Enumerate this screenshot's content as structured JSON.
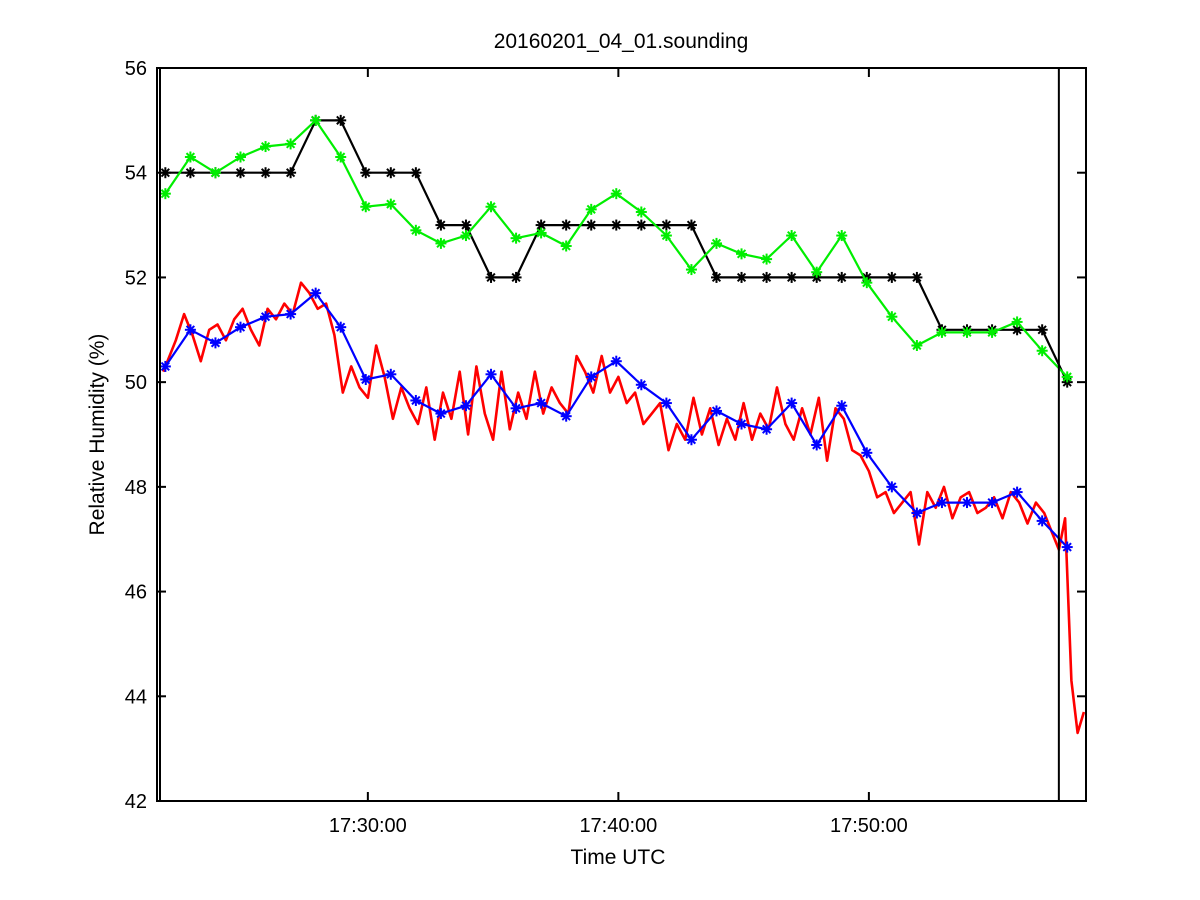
{
  "chart_data": {
    "type": "line",
    "title": "20160201_04_01.sounding",
    "xlabel": "Time UTC",
    "ylabel": "Relative Humidity (%)",
    "xlim": [
      "17:21:35",
      "17:58:40"
    ],
    "ylim": [
      42,
      56
    ],
    "xtick_labels": [
      "17:30:00",
      "17:40:00",
      "17:50:00"
    ],
    "xticks": [
      "17:30:00",
      "17:40:00",
      "17:50:00"
    ],
    "yticks": [
      42,
      44,
      46,
      48,
      50,
      52,
      54,
      56
    ],
    "grid": false,
    "vertical_lines": [
      "17:57:35"
    ],
    "series": [
      {
        "color": "#000000",
        "marker": "asterisk",
        "x": [
          "17:21:55",
          "17:22:55",
          "17:23:55",
          "17:24:55",
          "17:25:55",
          "17:26:55",
          "17:27:55",
          "17:28:55",
          "17:29:55",
          "17:30:55",
          "17:31:55",
          "17:32:55",
          "17:33:55",
          "17:34:55",
          "17:35:55",
          "17:36:55",
          "17:37:55",
          "17:38:55",
          "17:39:55",
          "17:40:55",
          "17:41:55",
          "17:42:55",
          "17:43:55",
          "17:44:55",
          "17:45:55",
          "17:46:55",
          "17:47:55",
          "17:48:55",
          "17:49:55",
          "17:50:55",
          "17:51:55",
          "17:52:55",
          "17:53:55",
          "17:54:55",
          "17:55:55",
          "17:56:55",
          "17:57:55"
        ],
        "y": [
          54,
          54,
          54,
          54,
          54,
          54,
          55,
          55,
          54,
          54,
          54,
          53,
          53,
          52,
          52,
          53,
          53,
          53,
          53,
          53,
          53,
          53,
          52,
          52,
          52,
          52,
          52,
          52,
          52,
          52,
          52,
          51,
          51,
          51,
          51,
          51,
          50
        ]
      },
      {
        "color": "#00ee00",
        "marker": "asterisk",
        "x": [
          "17:21:55",
          "17:22:55",
          "17:23:55",
          "17:24:55",
          "17:25:55",
          "17:26:55",
          "17:27:55",
          "17:28:55",
          "17:29:55",
          "17:30:55",
          "17:31:55",
          "17:32:55",
          "17:33:55",
          "17:34:55",
          "17:35:55",
          "17:36:55",
          "17:37:55",
          "17:38:55",
          "17:39:55",
          "17:40:55",
          "17:41:55",
          "17:42:55",
          "17:43:55",
          "17:44:55",
          "17:45:55",
          "17:46:55",
          "17:47:55",
          "17:48:55",
          "17:49:55",
          "17:50:55",
          "17:51:55",
          "17:52:55",
          "17:53:55",
          "17:54:55",
          "17:55:55",
          "17:56:55",
          "17:57:55"
        ],
        "y": [
          53.6,
          54.3,
          54.0,
          54.3,
          54.5,
          54.55,
          55.0,
          54.3,
          53.35,
          53.4,
          52.9,
          52.65,
          52.8,
          53.35,
          52.75,
          52.85,
          52.6,
          53.3,
          53.6,
          53.25,
          52.8,
          52.15,
          52.65,
          52.45,
          52.35,
          52.8,
          52.1,
          52.8,
          51.9,
          51.25,
          50.7,
          50.95,
          50.95,
          50.95,
          51.15,
          50.6,
          50.1
        ]
      },
      {
        "color": "#0000ff",
        "marker": "asterisk",
        "x": [
          "17:21:55",
          "17:22:55",
          "17:23:55",
          "17:24:55",
          "17:25:55",
          "17:26:55",
          "17:27:55",
          "17:28:55",
          "17:29:55",
          "17:30:55",
          "17:31:55",
          "17:32:55",
          "17:33:55",
          "17:34:55",
          "17:35:55",
          "17:36:55",
          "17:37:55",
          "17:38:55",
          "17:39:55",
          "17:40:55",
          "17:41:55",
          "17:42:55",
          "17:43:55",
          "17:44:55",
          "17:45:55",
          "17:46:55",
          "17:47:55",
          "17:48:55",
          "17:49:55",
          "17:50:55",
          "17:51:55",
          "17:52:55",
          "17:53:55",
          "17:54:55",
          "17:55:55",
          "17:56:55",
          "17:57:55"
        ],
        "y": [
          50.3,
          51.0,
          50.75,
          51.05,
          51.25,
          51.3,
          51.7,
          51.05,
          50.05,
          50.15,
          49.65,
          49.4,
          49.55,
          50.15,
          49.5,
          49.6,
          49.35,
          50.1,
          50.4,
          49.95,
          49.6,
          48.9,
          49.45,
          49.2,
          49.1,
          49.6,
          48.8,
          49.55,
          48.65,
          48.0,
          47.5,
          47.7,
          47.7,
          47.7,
          47.9,
          47.35,
          46.85
        ]
      },
      {
        "color": "#ff0000",
        "marker": "none",
        "x": [
          "17:21:50",
          "17:22:20",
          "17:22:40",
          "17:23:00",
          "17:23:20",
          "17:23:40",
          "17:24:00",
          "17:24:20",
          "17:24:40",
          "17:25:00",
          "17:25:20",
          "17:25:40",
          "17:26:00",
          "17:26:20",
          "17:26:40",
          "17:27:00",
          "17:27:20",
          "17:27:40",
          "17:28:00",
          "17:28:20",
          "17:28:40",
          "17:29:00",
          "17:29:20",
          "17:29:40",
          "17:30:00",
          "17:30:20",
          "17:30:40",
          "17:31:00",
          "17:31:20",
          "17:31:40",
          "17:32:00",
          "17:32:20",
          "17:32:40",
          "17:33:00",
          "17:33:20",
          "17:33:40",
          "17:34:00",
          "17:34:20",
          "17:34:40",
          "17:35:00",
          "17:35:20",
          "17:35:40",
          "17:36:00",
          "17:36:20",
          "17:36:40",
          "17:37:00",
          "17:37:20",
          "17:37:40",
          "17:38:00",
          "17:38:20",
          "17:38:40",
          "17:39:00",
          "17:39:20",
          "17:39:40",
          "17:40:00",
          "17:40:20",
          "17:40:40",
          "17:41:00",
          "17:41:20",
          "17:41:40",
          "17:42:00",
          "17:42:20",
          "17:42:40",
          "17:43:00",
          "17:43:20",
          "17:43:40",
          "17:44:00",
          "17:44:20",
          "17:44:40",
          "17:45:00",
          "17:45:20",
          "17:45:40",
          "17:46:00",
          "17:46:20",
          "17:46:40",
          "17:47:00",
          "17:47:20",
          "17:47:40",
          "17:48:00",
          "17:48:20",
          "17:48:40",
          "17:49:00",
          "17:49:20",
          "17:49:40",
          "17:50:00",
          "17:50:20",
          "17:50:40",
          "17:51:00",
          "17:51:20",
          "17:51:40",
          "17:52:00",
          "17:52:20",
          "17:52:40",
          "17:53:00",
          "17:53:20",
          "17:53:40",
          "17:54:00",
          "17:54:20",
          "17:54:40",
          "17:55:00",
          "17:55:20",
          "17:55:40",
          "17:56:00",
          "17:56:20",
          "17:56:40",
          "17:57:00",
          "17:57:20",
          "17:57:35",
          "17:57:50",
          "17:58:05",
          "17:58:20",
          "17:58:35"
        ],
        "y": [
          50.2,
          50.8,
          51.3,
          50.9,
          50.4,
          51.0,
          51.1,
          50.8,
          51.2,
          51.4,
          51.0,
          50.7,
          51.4,
          51.2,
          51.5,
          51.3,
          51.9,
          51.7,
          51.4,
          51.5,
          50.9,
          49.8,
          50.3,
          49.9,
          49.7,
          50.7,
          50.1,
          49.3,
          49.9,
          49.5,
          49.2,
          49.9,
          48.9,
          49.8,
          49.3,
          50.2,
          49.0,
          50.3,
          49.4,
          48.9,
          50.2,
          49.1,
          49.8,
          49.3,
          50.2,
          49.4,
          49.9,
          49.6,
          49.4,
          50.5,
          50.2,
          49.8,
          50.5,
          49.8,
          50.1,
          49.6,
          49.8,
          49.2,
          49.4,
          49.6,
          48.7,
          49.2,
          48.9,
          49.7,
          49.0,
          49.5,
          48.8,
          49.3,
          48.9,
          49.6,
          48.9,
          49.4,
          49.1,
          49.9,
          49.2,
          48.9,
          49.5,
          49.0,
          49.7,
          48.5,
          49.5,
          49.3,
          48.7,
          48.6,
          48.3,
          47.8,
          47.9,
          47.5,
          47.7,
          47.9,
          46.9,
          47.9,
          47.6,
          48.0,
          47.4,
          47.8,
          47.9,
          47.5,
          47.6,
          47.8,
          47.4,
          47.9,
          47.7,
          47.3,
          47.7,
          47.5,
          47.1,
          46.8,
          47.4,
          44.3,
          43.3,
          43.7
        ]
      }
    ]
  }
}
